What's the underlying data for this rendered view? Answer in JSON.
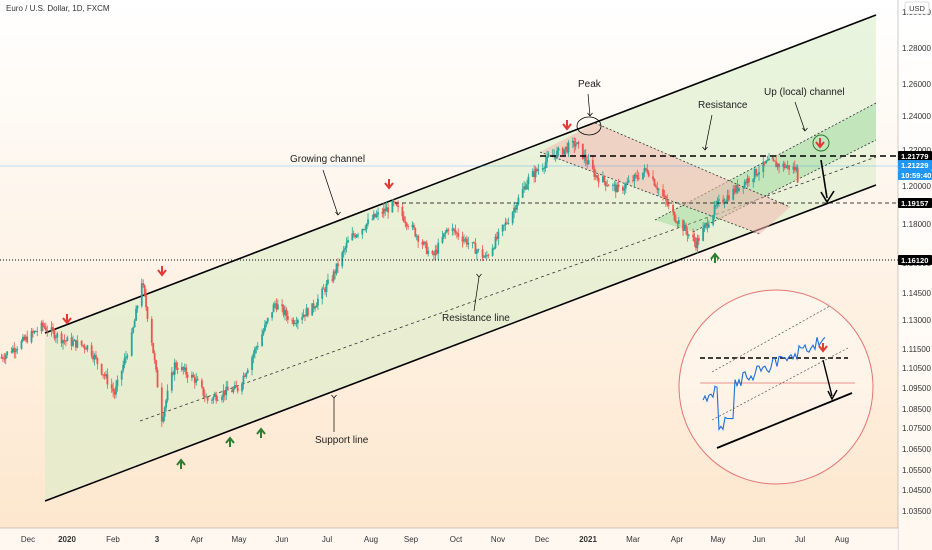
{
  "header": {
    "symbol_title": "Euro / U.S. Dollar, 1D, FXCM"
  },
  "currency_label": "USD",
  "chart_data": {
    "type": "candlestick",
    "instrument": "EUR/USD",
    "timeframe": "1D",
    "x_range": [
      "2019-12-01",
      "2021-08-10"
    ],
    "y_range": [
      1.0,
      1.3
    ],
    "y_ticks": [
      "1.30000",
      "1.28000",
      "1.26000",
      "1.24000",
      "1.22000",
      "1.20000",
      "1.18000",
      "1.16000",
      "1.14500",
      "1.13000",
      "1.11500",
      "1.10500",
      "1.09500",
      "1.08500",
      "1.07500",
      "1.06500",
      "1.05500",
      "1.04500",
      "1.03500"
    ],
    "x_ticks": [
      "Dec",
      "2020",
      "Feb",
      "3",
      "Apr",
      "May",
      "Jun",
      "Jul",
      "Aug",
      "Sep",
      "Oct",
      "Nov",
      "Dec",
      "2021",
      "Mar",
      "Apr",
      "May",
      "Jun",
      "Jul",
      "Aug"
    ],
    "price_path": [
      [
        "2019-12-01",
        1.101
      ],
      [
        "2019-12-15",
        1.11
      ],
      [
        "2019-12-31",
        1.121
      ],
      [
        "2020-01-15",
        1.112
      ],
      [
        "2020-02-01",
        1.108
      ],
      [
        "2020-02-19",
        1.079
      ],
      [
        "2020-03-02",
        1.114
      ],
      [
        "2020-03-09",
        1.149
      ],
      [
        "2020-03-16",
        1.112
      ],
      [
        "2020-03-23",
        1.064
      ],
      [
        "2020-04-01",
        1.097
      ],
      [
        "2020-04-15",
        1.088
      ],
      [
        "2020-04-24",
        1.075
      ],
      [
        "2020-05-05",
        1.08
      ],
      [
        "2020-05-15",
        1.082
      ],
      [
        "2020-06-01",
        1.116
      ],
      [
        "2020-06-10",
        1.135
      ],
      [
        "2020-06-22",
        1.124
      ],
      [
        "2020-07-06",
        1.132
      ],
      [
        "2020-07-20",
        1.151
      ],
      [
        "2020-08-01",
        1.175
      ],
      [
        "2020-08-18",
        1.188
      ],
      [
        "2020-09-01",
        1.196
      ],
      [
        "2020-09-15",
        1.18
      ],
      [
        "2020-09-28",
        1.163
      ],
      [
        "2020-10-09",
        1.182
      ],
      [
        "2020-10-20",
        1.175
      ],
      [
        "2020-11-04",
        1.163
      ],
      [
        "2020-11-20",
        1.187
      ],
      [
        "2020-12-04",
        1.212
      ],
      [
        "2020-12-20",
        1.226
      ],
      [
        "2021-01-06",
        1.234
      ],
      [
        "2021-01-20",
        1.214
      ],
      [
        "2021-02-05",
        1.205
      ],
      [
        "2021-02-25",
        1.218
      ],
      [
        "2021-03-15",
        1.19
      ],
      [
        "2021-03-31",
        1.172
      ],
      [
        "2021-04-15",
        1.196
      ],
      [
        "2021-05-01",
        1.208
      ],
      [
        "2021-05-20",
        1.222
      ],
      [
        "2021-06-01",
        1.22
      ],
      [
        "2021-06-09",
        1.218
      ],
      [
        "2021-06-10",
        1.212
      ]
    ],
    "price_labels": [
      {
        "value": "1.21779",
        "color": "#000000"
      },
      {
        "value": "1.21229",
        "color": "#2196f3"
      },
      {
        "value": "10:59:40",
        "color": "#2196f3"
      },
      {
        "value": "1.19157",
        "color": "#000000"
      },
      {
        "value": "1.16120",
        "color": "#000000"
      }
    ],
    "annotations": [
      "Peak",
      "Resistance",
      "Up (local) channel",
      "Growing channel",
      "Resistance line",
      "Support line"
    ],
    "colors": {
      "up": "#26a69a",
      "down": "#ef5350",
      "sell_arrow": "#e53935",
      "buy_arrow": "#2e7d32"
    }
  }
}
